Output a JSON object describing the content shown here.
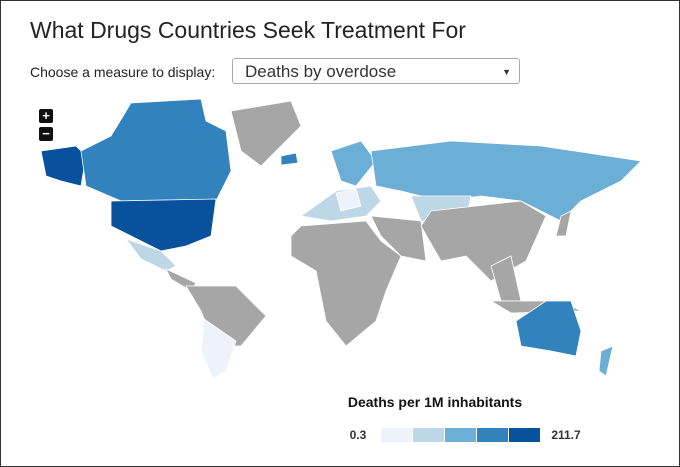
{
  "header": {
    "title": "What Drugs Countries Seek Treatment For"
  },
  "control": {
    "label": "Choose a measure to display:",
    "selected": "Deaths by overdose"
  },
  "zoom": {
    "in": "+",
    "out": "−"
  },
  "legend": {
    "title": "Deaths per 1M inhabitants",
    "min": 0.3,
    "max": 211.7,
    "colors": [
      "#eef3fb",
      "#bdd7e7",
      "#6baed6",
      "#3182bd",
      "#08519c"
    ]
  }
}
